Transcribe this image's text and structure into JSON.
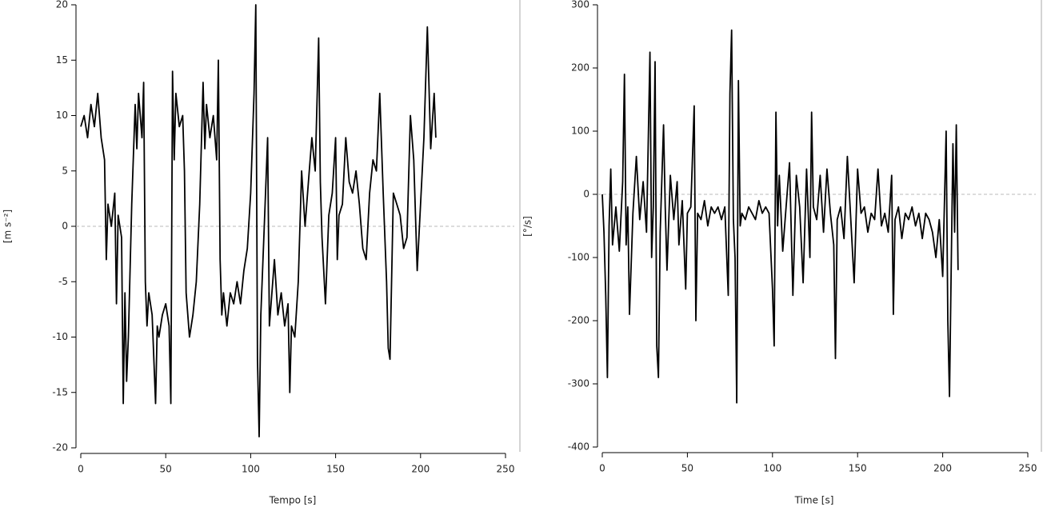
{
  "chart_data": [
    {
      "type": "line",
      "xlabel": "Tempo [s]",
      "ylabel": "[m s⁻²]",
      "color": "#000000",
      "hline": 0,
      "xlim": [
        0,
        250
      ],
      "ylim": [
        -20,
        20
      ],
      "xticks": [
        0,
        50,
        100,
        150,
        200,
        250
      ],
      "yticks": [
        -20,
        -15,
        -10,
        -5,
        0,
        5,
        10,
        15,
        20
      ],
      "x": [
        0,
        2,
        4,
        6,
        8,
        10,
        12,
        14,
        15,
        16,
        18,
        20,
        21,
        22,
        24,
        25,
        26,
        27,
        28,
        30,
        32,
        33,
        34,
        36,
        37,
        38,
        39,
        40,
        42,
        44,
        45,
        46,
        48,
        50,
        52,
        53,
        54,
        55,
        56,
        58,
        60,
        61,
        62,
        64,
        66,
        68,
        70,
        72,
        73,
        74,
        76,
        78,
        80,
        81,
        82,
        83,
        84,
        86,
        88,
        90,
        92,
        94,
        96,
        98,
        100,
        102,
        103,
        104,
        105,
        106,
        108,
        110,
        111,
        112,
        114,
        116,
        118,
        120,
        122,
        123,
        124,
        126,
        128,
        130,
        132,
        134,
        136,
        138,
        140,
        141,
        142,
        144,
        146,
        148,
        150,
        151,
        152,
        154,
        156,
        158,
        160,
        162,
        164,
        166,
        168,
        170,
        172,
        174,
        176,
        178,
        180,
        181,
        182,
        184,
        186,
        188,
        190,
        192,
        194,
        196,
        198,
        200,
        202,
        204,
        206,
        208,
        209
      ],
      "values": [
        9,
        10,
        8,
        11,
        9,
        12,
        8,
        6,
        -3,
        2,
        0,
        3,
        -7,
        1,
        -1,
        -16,
        -6,
        -14,
        -10,
        2,
        11,
        7,
        12,
        8,
        13,
        -5,
        -9,
        -6,
        -8,
        -16,
        -9,
        -10,
        -8,
        -7,
        -9,
        -16,
        14,
        6,
        12,
        9,
        10,
        5,
        -6,
        -10,
        -8,
        -5,
        2,
        13,
        7,
        11,
        8,
        10,
        6,
        15,
        -3,
        -8,
        -6,
        -9,
        -6,
        -7,
        -5,
        -7,
        -4,
        -2,
        3,
        12,
        20,
        -12,
        -19,
        -8,
        0,
        8,
        -9,
        -7,
        -3,
        -8,
        -6,
        -9,
        -7,
        -15,
        -9,
        -10,
        -5,
        5,
        0,
        4,
        8,
        5,
        17,
        4,
        -1,
        -7,
        1,
        3,
        8,
        -3,
        1,
        2,
        8,
        4,
        3,
        5,
        2,
        -2,
        -3,
        3,
        6,
        5,
        12,
        3,
        -5,
        -11,
        -12,
        3,
        2,
        1,
        -2,
        -1,
        10,
        6,
        -4,
        2,
        8,
        18,
        7,
        12,
        8
      ]
    },
    {
      "type": "line",
      "xlabel": "Time [s]",
      "ylabel": "[°/s]",
      "color": "#000000",
      "hline": 0,
      "xlim": [
        0,
        250
      ],
      "ylim": [
        -400,
        300
      ],
      "xticks": [
        0,
        50,
        100,
        150,
        200,
        250
      ],
      "yticks": [
        -400,
        -300,
        -200,
        -100,
        0,
        100,
        200,
        300
      ],
      "x": [
        0,
        1,
        2,
        3,
        4,
        5,
        6,
        8,
        10,
        12,
        13,
        14,
        15,
        16,
        18,
        20,
        22,
        24,
        26,
        28,
        29,
        30,
        31,
        32,
        33,
        34,
        36,
        37,
        38,
        40,
        42,
        44,
        45,
        47,
        49,
        50,
        52,
        54,
        55,
        56,
        58,
        60,
        62,
        64,
        66,
        68,
        70,
        72,
        74,
        75,
        76,
        77,
        78,
        79,
        80,
        81,
        82,
        84,
        86,
        88,
        90,
        92,
        94,
        96,
        98,
        100,
        101,
        102,
        103,
        104,
        106,
        108,
        110,
        112,
        114,
        116,
        118,
        120,
        122,
        123,
        124,
        126,
        128,
        130,
        132,
        134,
        136,
        137,
        138,
        140,
        142,
        144,
        146,
        148,
        150,
        152,
        154,
        156,
        158,
        160,
        162,
        164,
        166,
        168,
        170,
        171,
        172,
        174,
        176,
        178,
        180,
        182,
        184,
        186,
        188,
        190,
        192,
        194,
        196,
        198,
        200,
        202,
        203,
        204,
        205,
        206,
        207,
        208,
        209
      ],
      "values": [
        0,
        -60,
        -160,
        -290,
        -50,
        40,
        -80,
        -20,
        -90,
        20,
        190,
        -80,
        -20,
        -190,
        -30,
        60,
        -40,
        20,
        -60,
        225,
        -100,
        -20,
        210,
        -240,
        -290,
        -60,
        110,
        -20,
        -120,
        30,
        -40,
        20,
        -80,
        -10,
        -150,
        -30,
        -20,
        140,
        -200,
        -30,
        -40,
        -10,
        -50,
        -20,
        -30,
        -20,
        -40,
        -20,
        -160,
        160,
        260,
        -40,
        -100,
        -330,
        180,
        -50,
        -30,
        -40,
        -20,
        -30,
        -40,
        -10,
        -30,
        -20,
        -30,
        -150,
        -240,
        130,
        -50,
        30,
        -90,
        -20,
        50,
        -160,
        30,
        -20,
        -140,
        40,
        -100,
        130,
        -20,
        -40,
        30,
        -60,
        40,
        -30,
        -80,
        -260,
        -40,
        -20,
        -70,
        60,
        -40,
        -140,
        40,
        -30,
        -20,
        -60,
        -30,
        -40,
        40,
        -50,
        -30,
        -60,
        30,
        -190,
        -40,
        -20,
        -70,
        -30,
        -40,
        -20,
        -50,
        -30,
        -70,
        -30,
        -40,
        -60,
        -100,
        -40,
        -130,
        100,
        -200,
        -320,
        -120,
        80,
        -60,
        110,
        -120
      ]
    }
  ]
}
